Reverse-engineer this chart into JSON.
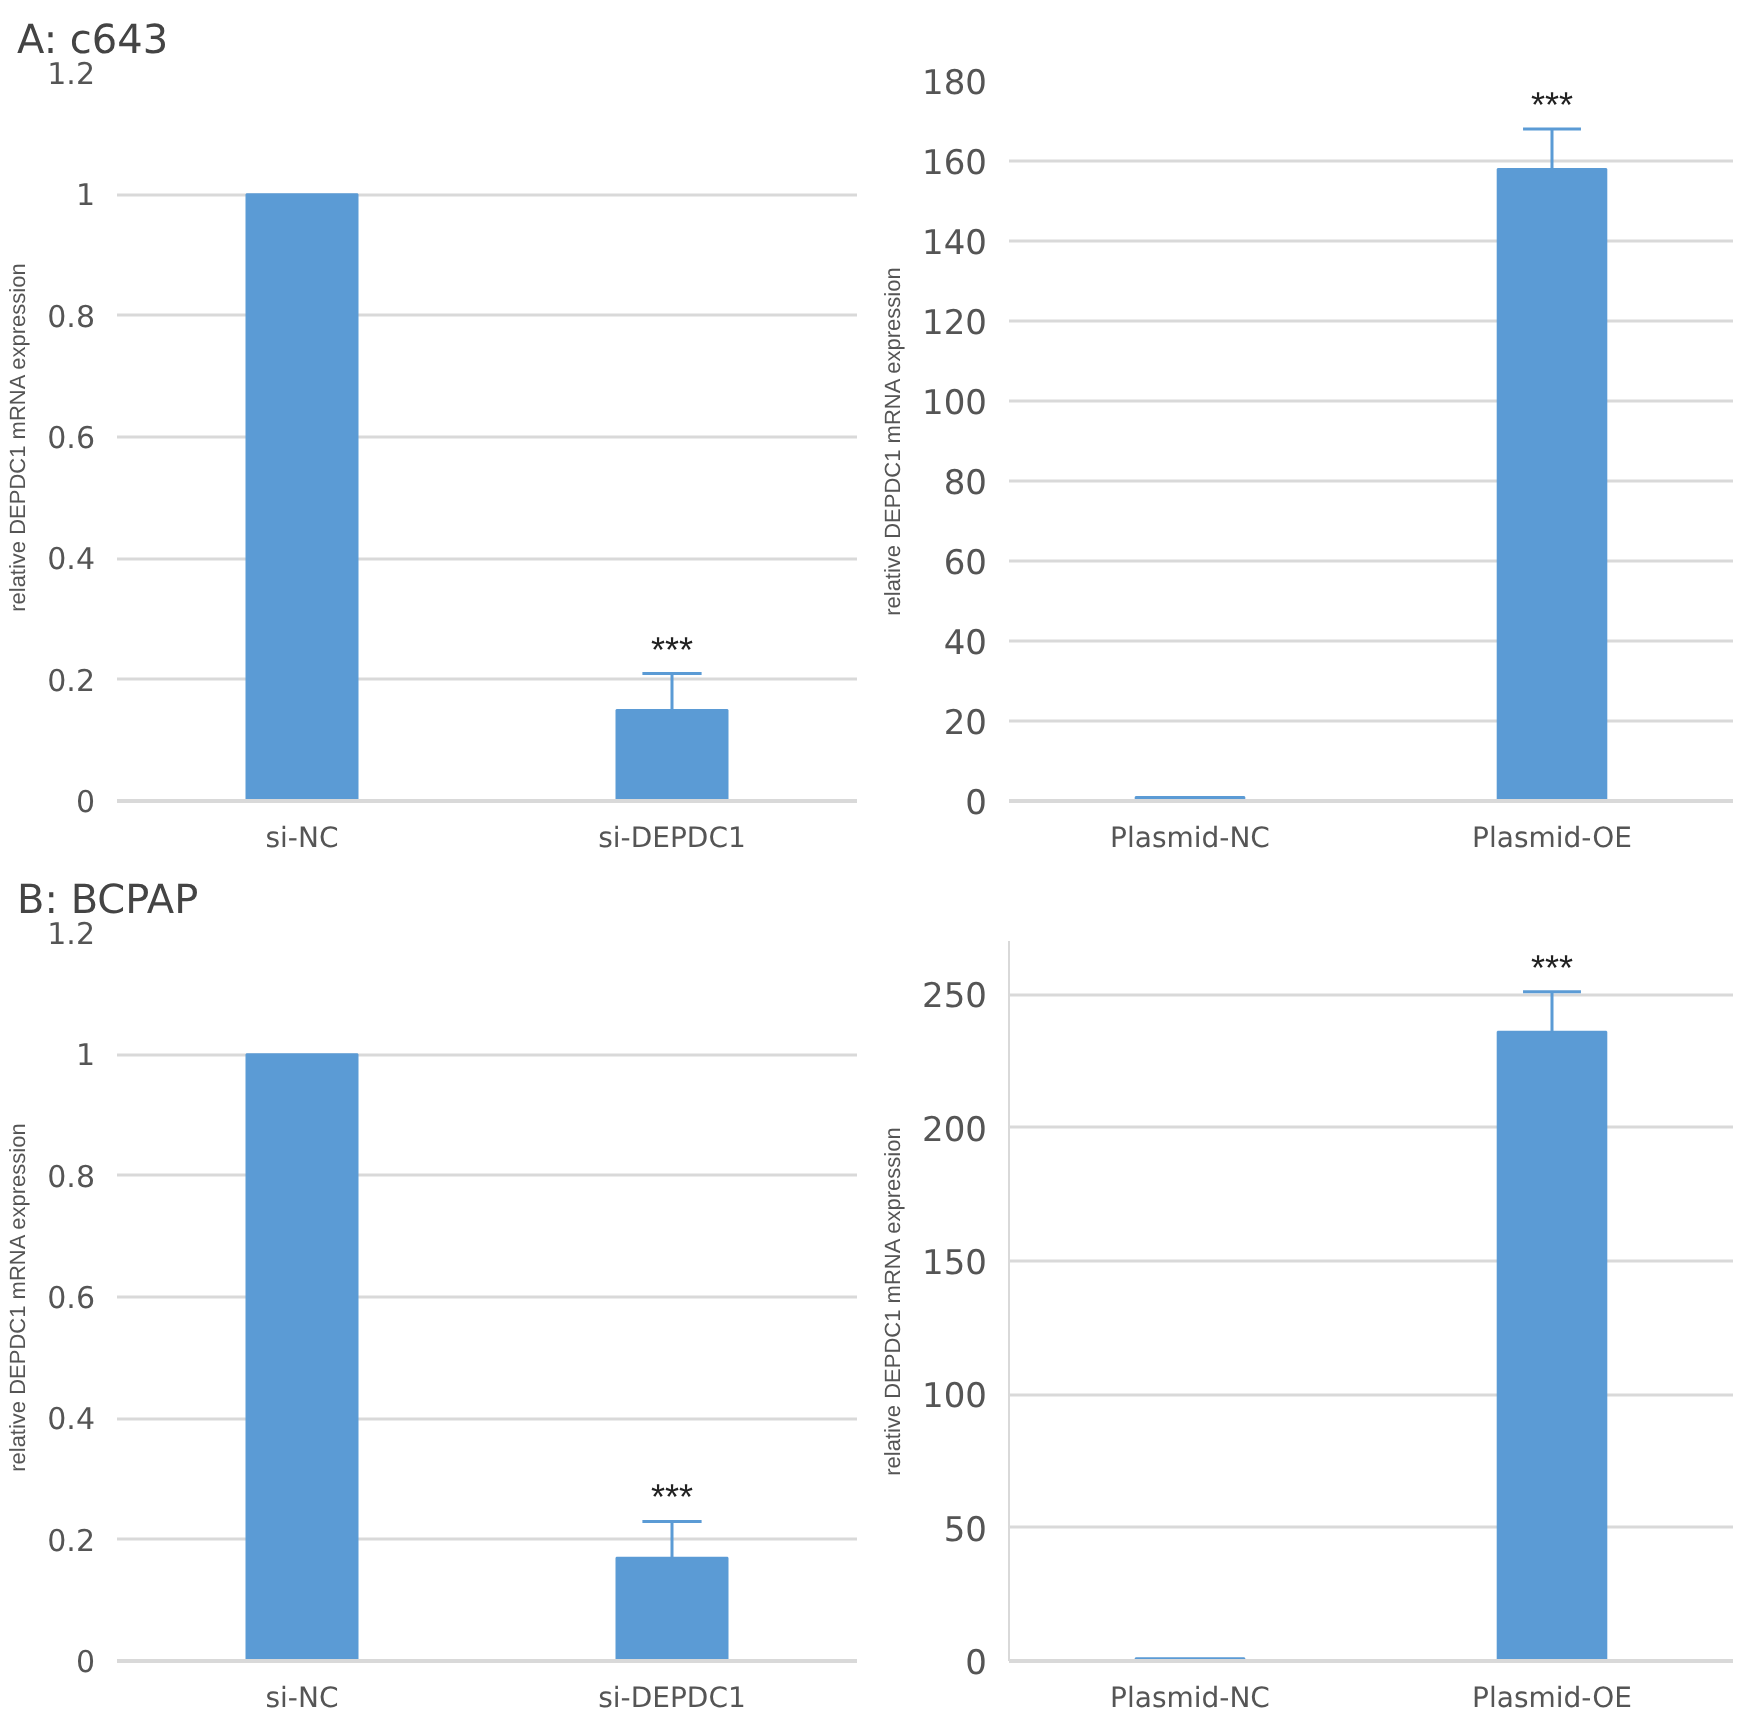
{
  "chart_data": [
    {
      "type": "bar",
      "title": "A: c643",
      "ylabel": "relative DEPDC1 mRNA expression",
      "categories": [
        "si-NC",
        "si-DEPDC1"
      ],
      "values": [
        1,
        0.15
      ],
      "errors": [
        null,
        [
          0.15,
          0.21
        ]
      ],
      "color": "#5b9bd5",
      "ylim": [
        0,
        1.2
      ],
      "yticks": [
        0,
        0.2,
        0.4,
        0.6,
        0.8,
        1,
        1.2
      ],
      "grid": "y",
      "annotations": [
        {
          "text": "***",
          "x": "si-DEPDC1",
          "y": 0.21
        }
      ]
    },
    {
      "type": "bar",
      "ylabel": "relative DEPDC1 mRNA expression",
      "categories": [
        "Plasmid-NC",
        "Plasmid-OE"
      ],
      "values": [
        1,
        158
      ],
      "errors": [
        null,
        [
          158,
          168
        ]
      ],
      "color": "#5b9bd5",
      "ylim": [
        0,
        180
      ],
      "yticks": [
        0,
        20,
        40,
        60,
        80,
        100,
        120,
        140,
        160,
        180
      ],
      "grid": "y",
      "annotations": [
        {
          "text": "***",
          "x": "Plasmid-OE",
          "y": 168
        }
      ]
    },
    {
      "type": "bar",
      "title": "B: BCPAP",
      "ylabel": "relative DEPDC1 mRNA expression",
      "categories": [
        "si-NC",
        "si-DEPDC1"
      ],
      "values": [
        1,
        0.17
      ],
      "errors": [
        null,
        [
          0.17,
          0.23
        ]
      ],
      "color": "#5b9bd5",
      "ylim": [
        0,
        1.2
      ],
      "yticks": [
        0,
        0.2,
        0.4,
        0.6,
        0.8,
        1,
        1.2
      ],
      "grid": "y",
      "annotations": [
        {
          "text": "***",
          "x": "si-DEPDC1",
          "y": 0.23
        }
      ]
    },
    {
      "type": "bar",
      "ylabel": "relative DEPDC1 mRNA expression",
      "categories": [
        "Plasmid-NC",
        "Plasmid-OE"
      ],
      "values": [
        1,
        236
      ],
      "errors": [
        null,
        [
          236,
          251
        ]
      ],
      "color": "#5b9bd5",
      "ylim": [
        0,
        270
      ],
      "yticks": [
        0,
        50,
        100,
        150,
        200,
        250
      ],
      "grid": "y",
      "annotations": [
        {
          "text": "***",
          "x": "Plasmid-OE",
          "y": 251
        }
      ]
    }
  ]
}
